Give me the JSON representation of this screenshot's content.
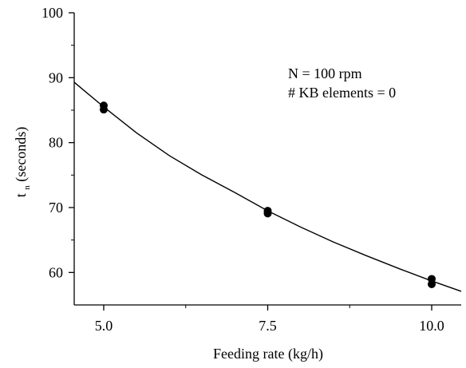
{
  "chart_data": {
    "type": "scatter",
    "title": "",
    "xlabel": "Feeding rate (kg/h)",
    "ylabel": {
      "main": "t",
      "subscript": "n",
      "suffix": " (seconds)"
    },
    "xlim": [
      4.55,
      10.45
    ],
    "ylim": [
      55,
      100
    ],
    "x_ticks": [
      5.0,
      7.5,
      10.0
    ],
    "x_tick_labels": [
      "5.0",
      "7.5",
      "10.0"
    ],
    "x_minor_ticks": [
      6.25,
      8.75
    ],
    "y_ticks": [
      60,
      70,
      80,
      90,
      100
    ],
    "y_tick_labels": [
      "60",
      "70",
      "80",
      "90",
      "100"
    ],
    "y_minor_ticks": [
      65,
      75,
      85,
      95
    ],
    "grid": false,
    "annotations": [
      "N = 100 rpm",
      "# KB elements = 0"
    ],
    "series": [
      {
        "type": "scatter",
        "color": "#000000",
        "points": [
          {
            "x": 5.0,
            "y": 85.7
          },
          {
            "x": 5.0,
            "y": 85.1
          },
          {
            "x": 7.5,
            "y": 69.5
          },
          {
            "x": 7.5,
            "y": 69.1
          },
          {
            "x": 10.0,
            "y": 59.0
          },
          {
            "x": 10.0,
            "y": 58.2
          }
        ]
      },
      {
        "type": "line",
        "color": "#000000",
        "points": [
          {
            "x": 4.55,
            "y": 89.3
          },
          {
            "x": 5.0,
            "y": 85.5
          },
          {
            "x": 5.5,
            "y": 81.5
          },
          {
            "x": 6.0,
            "y": 78.0
          },
          {
            "x": 6.5,
            "y": 75.0
          },
          {
            "x": 7.0,
            "y": 72.3
          },
          {
            "x": 7.5,
            "y": 69.5
          },
          {
            "x": 8.0,
            "y": 67.0
          },
          {
            "x": 8.5,
            "y": 64.7
          },
          {
            "x": 9.0,
            "y": 62.6
          },
          {
            "x": 9.5,
            "y": 60.6
          },
          {
            "x": 10.0,
            "y": 58.7
          },
          {
            "x": 10.45,
            "y": 57.1
          }
        ]
      }
    ]
  }
}
